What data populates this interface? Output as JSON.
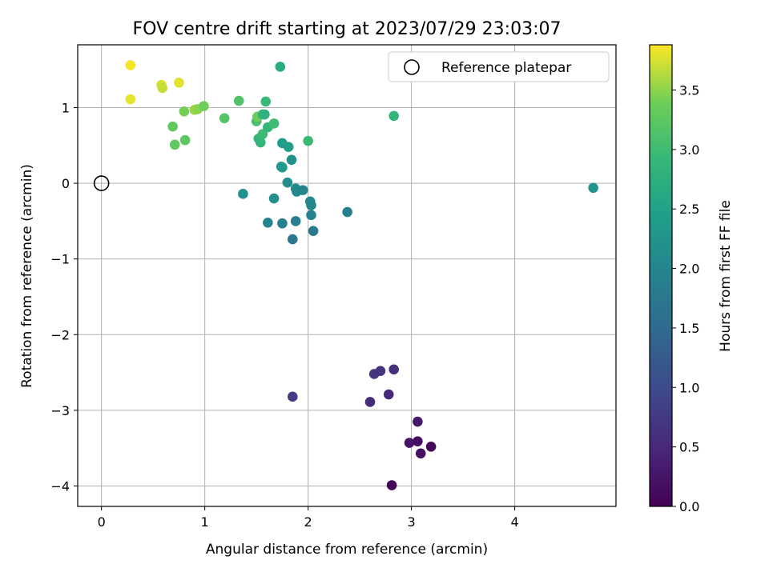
{
  "chart_data": {
    "type": "scatter",
    "title": "FOV centre drift starting at 2023/07/29 23:03:07",
    "xlabel": "Angular distance from reference (arcmin)",
    "ylabel": "Rotation from reference (arcmin)",
    "colorbar_label": "Hours from first FF file",
    "xlim": [
      -0.23,
      4.98
    ],
    "ylim": [
      -4.27,
      1.83
    ],
    "clim": [
      0.0,
      3.88
    ],
    "x_ticks": [
      0,
      1,
      2,
      3,
      4
    ],
    "x_tick_labels": [
      "0",
      "1",
      "2",
      "3",
      "4"
    ],
    "y_ticks": [
      1,
      0,
      -1,
      -2,
      -3,
      -4
    ],
    "y_tick_labels": [
      "1",
      "0",
      "−1",
      "−2",
      "−3",
      "−4"
    ],
    "c_ticks": [
      0.0,
      0.5,
      1.0,
      1.5,
      2.0,
      2.5,
      3.0,
      3.5
    ],
    "c_tick_labels": [
      "0.0",
      "0.5",
      "1.0",
      "1.5",
      "2.0",
      "2.5",
      "3.0",
      "3.5"
    ],
    "grid": true,
    "colormap": "viridis",
    "legend": {
      "position": "upper-right",
      "entries": [
        "Reference platepar"
      ]
    },
    "reference_point": {
      "x": 0,
      "y": 0,
      "label": "Reference platepar"
    },
    "points": [
      {
        "x": 0.28,
        "y": 1.56,
        "c": 3.85
      },
      {
        "x": 0.28,
        "y": 1.11,
        "c": 3.8
      },
      {
        "x": 0.58,
        "y": 1.3,
        "c": 3.75
      },
      {
        "x": 0.59,
        "y": 1.26,
        "c": 3.7
      },
      {
        "x": 0.75,
        "y": 1.33,
        "c": 3.78
      },
      {
        "x": 0.8,
        "y": 0.95,
        "c": 3.42
      },
      {
        "x": 0.9,
        "y": 0.97,
        "c": 3.55
      },
      {
        "x": 0.93,
        "y": 0.98,
        "c": 3.5
      },
      {
        "x": 0.99,
        "y": 1.02,
        "c": 3.4
      },
      {
        "x": 0.69,
        "y": 0.75,
        "c": 3.3
      },
      {
        "x": 0.71,
        "y": 0.51,
        "c": 3.28
      },
      {
        "x": 0.81,
        "y": 0.57,
        "c": 3.25
      },
      {
        "x": 1.19,
        "y": 0.86,
        "c": 3.2
      },
      {
        "x": 1.33,
        "y": 1.09,
        "c": 3.15
      },
      {
        "x": 1.5,
        "y": 0.82,
        "c": 3.1
      },
      {
        "x": 1.51,
        "y": 0.88,
        "c": 3.35
      },
      {
        "x": 1.56,
        "y": 0.91,
        "c": 2.85
      },
      {
        "x": 1.58,
        "y": 0.91,
        "c": 2.8
      },
      {
        "x": 1.59,
        "y": 1.08,
        "c": 2.95
      },
      {
        "x": 1.52,
        "y": 0.59,
        "c": 2.9
      },
      {
        "x": 1.56,
        "y": 0.65,
        "c": 2.98
      },
      {
        "x": 1.61,
        "y": 0.74,
        "c": 2.88
      },
      {
        "x": 1.67,
        "y": 0.79,
        "c": 3.0
      },
      {
        "x": 1.54,
        "y": 0.54,
        "c": 2.85
      },
      {
        "x": 1.73,
        "y": 1.54,
        "c": 2.72
      },
      {
        "x": 1.75,
        "y": 0.53,
        "c": 2.4
      },
      {
        "x": 1.81,
        "y": 0.48,
        "c": 2.45
      },
      {
        "x": 2.0,
        "y": 0.56,
        "c": 2.95
      },
      {
        "x": 2.83,
        "y": 0.89,
        "c": 2.9
      },
      {
        "x": 1.74,
        "y": 0.22,
        "c": 2.25
      },
      {
        "x": 1.75,
        "y": 0.21,
        "c": 2.35
      },
      {
        "x": 1.84,
        "y": 0.31,
        "c": 2.2
      },
      {
        "x": 1.8,
        "y": 0.01,
        "c": 2.15
      },
      {
        "x": 1.88,
        "y": -0.07,
        "c": 2.1
      },
      {
        "x": 1.89,
        "y": -0.11,
        "c": 2.05
      },
      {
        "x": 1.95,
        "y": -0.09,
        "c": 2.0
      },
      {
        "x": 1.37,
        "y": -0.14,
        "c": 2.2
      },
      {
        "x": 1.67,
        "y": -0.2,
        "c": 2.15
      },
      {
        "x": 2.02,
        "y": -0.24,
        "c": 2.05
      },
      {
        "x": 2.03,
        "y": -0.29,
        "c": 2.0
      },
      {
        "x": 2.03,
        "y": -0.42,
        "c": 1.95
      },
      {
        "x": 2.38,
        "y": -0.38,
        "c": 1.9
      },
      {
        "x": 1.61,
        "y": -0.52,
        "c": 1.95
      },
      {
        "x": 1.75,
        "y": -0.53,
        "c": 1.9
      },
      {
        "x": 1.88,
        "y": -0.5,
        "c": 1.85
      },
      {
        "x": 2.05,
        "y": -0.63,
        "c": 1.8
      },
      {
        "x": 1.85,
        "y": -0.74,
        "c": 1.78
      },
      {
        "x": 4.76,
        "y": -0.06,
        "c": 2.25
      },
      {
        "x": 1.85,
        "y": -2.82,
        "c": 0.8
      },
      {
        "x": 2.64,
        "y": -2.52,
        "c": 0.7
      },
      {
        "x": 2.7,
        "y": -2.48,
        "c": 0.65
      },
      {
        "x": 2.83,
        "y": -2.46,
        "c": 0.6
      },
      {
        "x": 2.6,
        "y": -2.89,
        "c": 0.55
      },
      {
        "x": 2.78,
        "y": -2.79,
        "c": 0.5
      },
      {
        "x": 3.06,
        "y": -3.15,
        "c": 0.3
      },
      {
        "x": 2.98,
        "y": -3.43,
        "c": 0.25
      },
      {
        "x": 3.06,
        "y": -3.41,
        "c": 0.15
      },
      {
        "x": 3.09,
        "y": -3.57,
        "c": 0.2
      },
      {
        "x": 3.19,
        "y": -3.48,
        "c": 0.1
      },
      {
        "x": 2.81,
        "y": -3.99,
        "c": 0.05
      }
    ]
  }
}
